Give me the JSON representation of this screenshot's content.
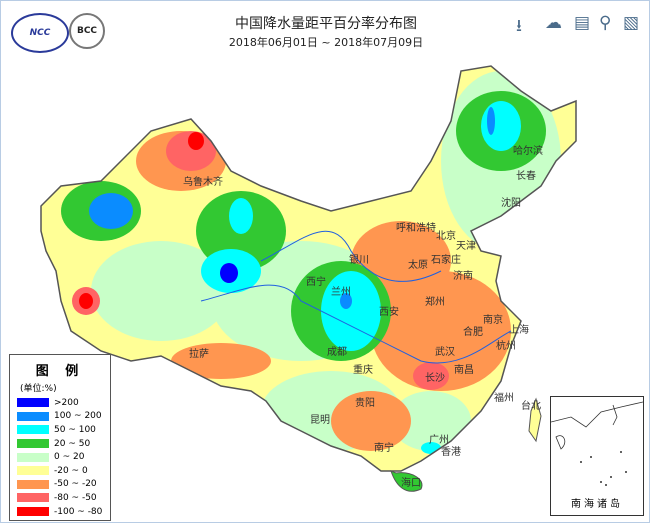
{
  "header": {
    "title": "中国降水量距平百分率分布图",
    "date_range": "2018年06月01日 ~ 2018年07月09日",
    "logos": [
      "NCC",
      "BCC"
    ]
  },
  "toolbar": [
    {
      "icon": "download-icon"
    },
    {
      "icon": "cloud-download-icon"
    },
    {
      "icon": "document-icon"
    },
    {
      "icon": "search-icon"
    },
    {
      "icon": "report-search-icon"
    }
  ],
  "legend": {
    "title": "图 例",
    "unit": "(单位:%)",
    "items": [
      {
        "label": ">200",
        "color": "#0000ff"
      },
      {
        "label": "100 ~ 200",
        "color": "#0a8cff"
      },
      {
        "label": "50 ~ 100",
        "color": "#00ffff"
      },
      {
        "label": "20 ~ 50",
        "color": "#32c832"
      },
      {
        "label": "0 ~ 20",
        "color": "#c8ffc8"
      },
      {
        "label": "-20 ~ 0",
        "color": "#ffff96"
      },
      {
        "label": "-50 ~ -20",
        "color": "#ff9650"
      },
      {
        "label": "-80 ~ -50",
        "color": "#ff6464"
      },
      {
        "label": "-100 ~ -80",
        "color": "#ff0000"
      }
    ]
  },
  "cities": [
    "乌鲁木齐",
    "哈尔滨",
    "长春",
    "沈阳",
    "呼和浩特",
    "北京",
    "天津",
    "石家庄",
    "太原",
    "济南",
    "银川",
    "西宁",
    "兰州",
    "郑州",
    "西安",
    "拉萨",
    "成都",
    "重庆",
    "武汉",
    "合肥",
    "南京",
    "上海",
    "杭州",
    "长沙",
    "南昌",
    "贵阳",
    "昆明",
    "福州",
    "台北",
    "南宁",
    "广州",
    "香港",
    "海口"
  ],
  "inset": {
    "label": "南海诸岛"
  }
}
